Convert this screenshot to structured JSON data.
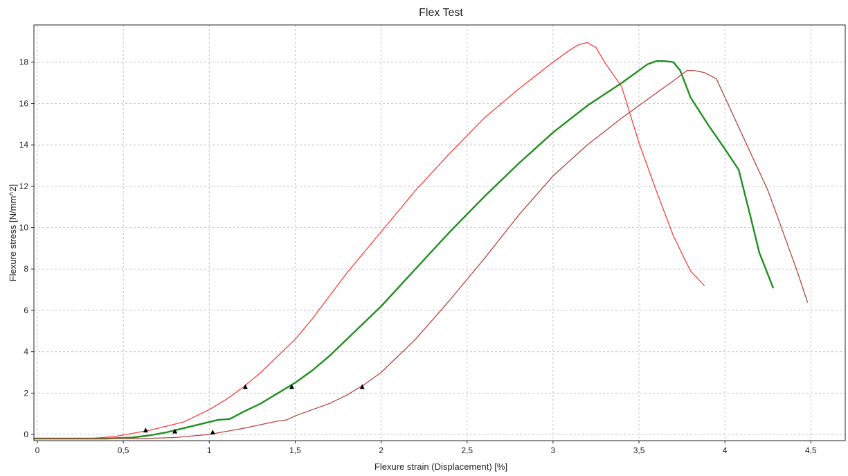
{
  "chart_data": {
    "type": "line",
    "title": "Flex Test",
    "xlabel": "Flexure strain (Displacement) [%]",
    "ylabel": "Flexure stress [N/mm^2]",
    "xlim": [
      -0.02,
      4.7
    ],
    "ylim": [
      -0.3,
      19.8
    ],
    "grid": true,
    "legend": "none",
    "x_ticks": [
      0,
      0.5,
      1,
      1.5,
      2,
      2.5,
      3,
      3.5,
      4,
      4.5
    ],
    "x_tick_labels": [
      "0",
      "0,5",
      "1",
      "1,5",
      "2",
      "2,5",
      "3",
      "3,5",
      "4",
      "4,5"
    ],
    "y_ticks": [
      0,
      2,
      4,
      6,
      8,
      10,
      12,
      14,
      16,
      18
    ],
    "y_tick_labels": [
      "0",
      "2",
      "4",
      "6",
      "8",
      "10",
      "12",
      "14",
      "16",
      "18"
    ],
    "series": [
      {
        "color": "#ff3b3b",
        "width": 1.3,
        "x": [
          -0.02,
          0.3,
          0.45,
          0.55,
          0.65,
          0.75,
          0.85,
          0.9,
          1.0,
          1.1,
          1.2,
          1.3,
          1.4,
          1.5,
          1.6,
          1.7,
          1.8,
          1.9,
          2.0,
          2.2,
          2.4,
          2.6,
          2.8,
          3.0,
          3.1,
          3.15,
          3.2,
          3.25,
          3.3,
          3.4,
          3.5,
          3.6,
          3.7,
          3.8,
          3.88
        ],
        "y": [
          -0.2,
          -0.2,
          -0.1,
          0.05,
          0.2,
          0.4,
          0.6,
          0.8,
          1.2,
          1.7,
          2.3,
          3.0,
          3.8,
          4.6,
          5.6,
          6.7,
          7.8,
          8.8,
          9.8,
          11.8,
          13.6,
          15.3,
          16.7,
          18.0,
          18.6,
          18.85,
          18.95,
          18.7,
          18.0,
          16.8,
          14.1,
          11.8,
          9.6,
          7.9,
          7.2
        ],
        "markers": [
          {
            "x": 0.63,
            "y": 0.2
          },
          {
            "x": 1.21,
            "y": 2.3
          }
        ]
      },
      {
        "color": "#1f8f1f",
        "width": 2.4,
        "x": [
          -0.02,
          0.4,
          0.55,
          0.65,
          0.75,
          0.85,
          0.95,
          1.05,
          1.12,
          1.2,
          1.3,
          1.4,
          1.5,
          1.6,
          1.7,
          1.8,
          1.9,
          2.0,
          2.2,
          2.4,
          2.6,
          2.8,
          3.0,
          3.2,
          3.4,
          3.5,
          3.55,
          3.6,
          3.65,
          3.7,
          3.74,
          3.8,
          3.9,
          4.0,
          4.08,
          4.15,
          4.2,
          4.28
        ],
        "y": [
          -0.2,
          -0.2,
          -0.15,
          -0.05,
          0.1,
          0.3,
          0.5,
          0.7,
          0.75,
          1.1,
          1.5,
          2.0,
          2.5,
          3.1,
          3.8,
          4.6,
          5.4,
          6.2,
          8.0,
          9.8,
          11.5,
          13.1,
          14.6,
          15.9,
          17.0,
          17.6,
          17.9,
          18.05,
          18.05,
          18.0,
          17.6,
          16.3,
          15.0,
          13.8,
          12.8,
          10.5,
          8.8,
          7.1
        ],
        "markers": [
          {
            "x": 0.8,
            "y": 0.15
          },
          {
            "x": 1.48,
            "y": 2.3
          }
        ]
      },
      {
        "color": "#b5433f",
        "width": 1.3,
        "x": [
          -0.02,
          0.6,
          0.8,
          1.0,
          1.2,
          1.4,
          1.45,
          1.5,
          1.6,
          1.7,
          1.8,
          1.9,
          2.0,
          2.1,
          2.2,
          2.4,
          2.6,
          2.8,
          3.0,
          3.2,
          3.4,
          3.6,
          3.7,
          3.78,
          3.82,
          3.88,
          3.95,
          4.1,
          4.25,
          4.42,
          4.48
        ],
        "y": [
          -0.2,
          -0.2,
          -0.15,
          0.0,
          0.3,
          0.65,
          0.7,
          0.9,
          1.2,
          1.5,
          1.9,
          2.4,
          3.0,
          3.8,
          4.6,
          6.5,
          8.5,
          10.6,
          12.5,
          14.0,
          15.3,
          16.5,
          17.1,
          17.6,
          17.6,
          17.5,
          17.2,
          14.5,
          11.8,
          7.9,
          6.4
        ],
        "markers": [
          {
            "x": 1.02,
            "y": 0.1
          },
          {
            "x": 1.89,
            "y": 2.3
          }
        ]
      }
    ]
  }
}
